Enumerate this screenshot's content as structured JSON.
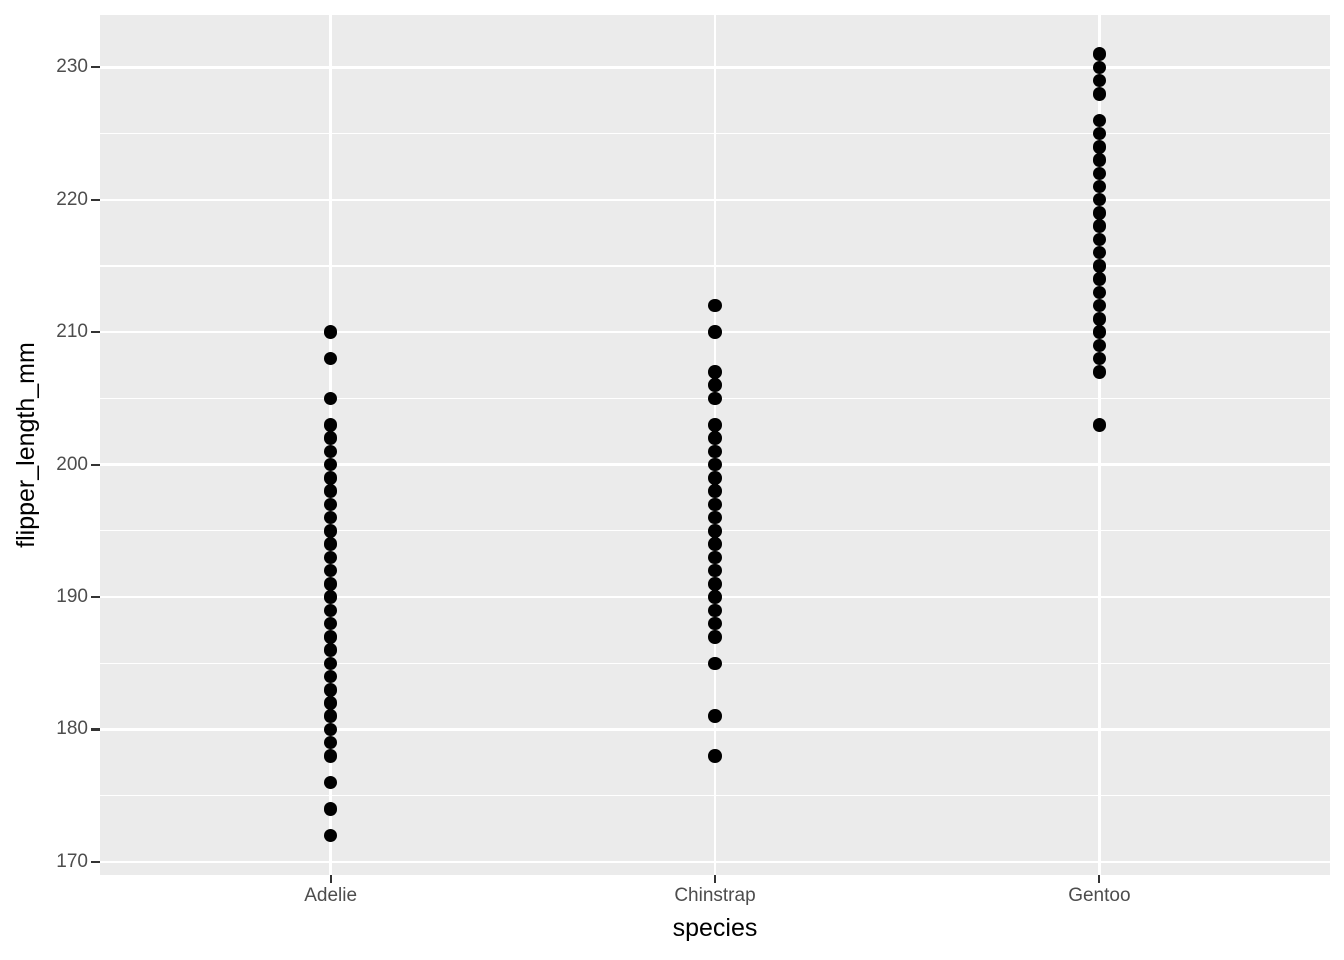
{
  "chart_data": {
    "type": "scatter",
    "title": "",
    "xlabel": "species",
    "ylabel": "flipper_length_mm",
    "categories": [
      "Adelie",
      "Chinstrap",
      "Gentoo"
    ],
    "series": [
      {
        "name": "Adelie",
        "values": [
          172,
          174,
          176,
          178,
          179,
          180,
          181,
          182,
          183,
          184,
          185,
          186,
          187,
          188,
          189,
          190,
          191,
          192,
          193,
          194,
          195,
          196,
          197,
          198,
          199,
          200,
          201,
          202,
          203,
          205,
          208,
          210
        ]
      },
      {
        "name": "Chinstrap",
        "values": [
          178,
          181,
          185,
          187,
          188,
          189,
          190,
          191,
          192,
          193,
          194,
          195,
          196,
          197,
          198,
          199,
          200,
          201,
          202,
          203,
          205,
          206,
          207,
          210,
          212
        ]
      },
      {
        "name": "Gentoo",
        "values": [
          203,
          207,
          208,
          209,
          210,
          211,
          212,
          213,
          214,
          215,
          216,
          217,
          218,
          219,
          220,
          221,
          222,
          223,
          224,
          225,
          226,
          228,
          229,
          230,
          231
        ]
      }
    ],
    "ylim": [
      169.05,
      233.95
    ],
    "y_major_ticks": [
      170,
      180,
      190,
      200,
      210,
      220,
      230
    ],
    "y_minor_ticks": [
      175,
      185,
      195,
      205,
      215,
      225
    ],
    "grid": true,
    "legend_position": "none",
    "point_color": "#000000",
    "panel_bg": "#EBEBEB",
    "gridline_color": "#ffffff",
    "axis_text_color": "#4D4D4D",
    "axis_title_color": "#000000",
    "tick_mark_color": "#333333"
  }
}
